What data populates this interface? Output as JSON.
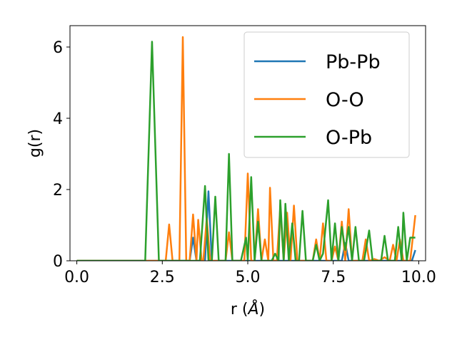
{
  "chart_data": {
    "type": "line",
    "xlabel_prefix": "r (",
    "xlabel_unit": "Å",
    "xlabel_suffix": ")",
    "ylabel": "g(r)",
    "xlim": [
      -0.2,
      10.2
    ],
    "ylim": [
      0,
      6.6
    ],
    "xticks": [
      0.0,
      2.5,
      5.0,
      7.5,
      10.0
    ],
    "xtick_labels": [
      "0.0",
      "2.5",
      "5.0",
      "7.5",
      "10.0"
    ],
    "yticks": [
      0,
      2,
      4,
      6
    ],
    "ytick_labels": [
      "0",
      "2",
      "4",
      "6"
    ],
    "grid": false,
    "legend_position": "top-right",
    "series": [
      {
        "name": "Pb-Pb",
        "color": "#1f77b4",
        "points": [
          [
            0,
            0
          ],
          [
            3.3,
            0
          ],
          [
            3.4,
            0.65
          ],
          [
            3.5,
            0
          ],
          [
            3.75,
            0
          ],
          [
            3.85,
            1.95
          ],
          [
            3.95,
            0
          ],
          [
            7.75,
            0
          ],
          [
            7.85,
            0.5
          ],
          [
            7.95,
            0
          ],
          [
            9.8,
            0
          ],
          [
            9.9,
            0.3
          ]
        ]
      },
      {
        "name": "O-O",
        "color": "#ff7f0e",
        "points": [
          [
            0,
            0
          ],
          [
            2.6,
            0
          ],
          [
            2.7,
            1.02
          ],
          [
            2.8,
            0
          ],
          [
            3.0,
            0
          ],
          [
            3.1,
            6.28
          ],
          [
            3.2,
            0
          ],
          [
            3.3,
            0
          ],
          [
            3.4,
            1.3
          ],
          [
            3.5,
            0
          ],
          [
            3.55,
            1.15
          ],
          [
            3.65,
            0
          ],
          [
            3.7,
            0
          ],
          [
            3.8,
            1.2
          ],
          [
            3.9,
            0
          ],
          [
            4.35,
            0
          ],
          [
            4.45,
            0.8
          ],
          [
            4.55,
            0
          ],
          [
            4.9,
            0
          ],
          [
            5.0,
            2.45
          ],
          [
            5.1,
            0
          ],
          [
            5.2,
            0
          ],
          [
            5.3,
            1.45
          ],
          [
            5.4,
            0
          ],
          [
            5.5,
            0.6
          ],
          [
            5.6,
            0
          ],
          [
            5.65,
            2.05
          ],
          [
            5.75,
            0
          ],
          [
            5.85,
            0
          ],
          [
            5.95,
            1.5
          ],
          [
            6.05,
            0
          ],
          [
            6.15,
            1.35
          ],
          [
            6.25,
            0
          ],
          [
            6.35,
            1.55
          ],
          [
            6.45,
            0
          ],
          [
            6.9,
            0
          ],
          [
            7.0,
            0.6
          ],
          [
            7.1,
            0
          ],
          [
            7.2,
            1.05
          ],
          [
            7.3,
            0
          ],
          [
            7.45,
            0
          ],
          [
            7.55,
            0.4
          ],
          [
            7.65,
            0
          ],
          [
            7.75,
            1.1
          ],
          [
            7.85,
            0
          ],
          [
            7.95,
            1.45
          ],
          [
            8.05,
            0
          ],
          [
            8.35,
            0
          ],
          [
            8.45,
            0.6
          ],
          [
            8.55,
            0
          ],
          [
            8.7,
            0.05
          ],
          [
            8.85,
            0
          ],
          [
            9.0,
            0.1
          ],
          [
            9.15,
            0
          ],
          [
            9.25,
            0.45
          ],
          [
            9.35,
            0
          ],
          [
            9.45,
            0.6
          ],
          [
            9.55,
            0
          ],
          [
            9.75,
            0
          ],
          [
            9.9,
            1.28
          ]
        ]
      },
      {
        "name": "O-Pb",
        "color": "#2ca02c",
        "points": [
          [
            0,
            0
          ],
          [
            2.0,
            0
          ],
          [
            2.2,
            6.15
          ],
          [
            2.4,
            0
          ],
          [
            3.6,
            0
          ],
          [
            3.75,
            2.1
          ],
          [
            3.85,
            0
          ],
          [
            3.95,
            0
          ],
          [
            4.05,
            1.8
          ],
          [
            4.15,
            0
          ],
          [
            4.35,
            0
          ],
          [
            4.45,
            3.0
          ],
          [
            4.55,
            0
          ],
          [
            4.8,
            0
          ],
          [
            4.95,
            0.65
          ],
          [
            5.0,
            0
          ],
          [
            5.1,
            2.35
          ],
          [
            5.2,
            0
          ],
          [
            5.3,
            1.1
          ],
          [
            5.4,
            0
          ],
          [
            5.7,
            0
          ],
          [
            5.8,
            0.2
          ],
          [
            5.9,
            0
          ],
          [
            5.95,
            1.7
          ],
          [
            6.05,
            0
          ],
          [
            6.1,
            1.6
          ],
          [
            6.2,
            0
          ],
          [
            6.3,
            1.05
          ],
          [
            6.4,
            0
          ],
          [
            6.5,
            0
          ],
          [
            6.6,
            1.4
          ],
          [
            6.7,
            0
          ],
          [
            6.9,
            0
          ],
          [
            7.0,
            0.45
          ],
          [
            7.1,
            0
          ],
          [
            7.2,
            0.2
          ],
          [
            7.35,
            1.7
          ],
          [
            7.45,
            0
          ],
          [
            7.55,
            1.05
          ],
          [
            7.65,
            0
          ],
          [
            7.75,
            0.95
          ],
          [
            7.85,
            0.3
          ],
          [
            7.95,
            0.95
          ],
          [
            8.05,
            0
          ],
          [
            8.15,
            0.95
          ],
          [
            8.25,
            0
          ],
          [
            8.4,
            0
          ],
          [
            8.55,
            0.85
          ],
          [
            8.65,
            0
          ],
          [
            8.9,
            0
          ],
          [
            9.0,
            0.7
          ],
          [
            9.1,
            0
          ],
          [
            9.3,
            0
          ],
          [
            9.4,
            0.95
          ],
          [
            9.5,
            0
          ],
          [
            9.55,
            1.35
          ],
          [
            9.65,
            0
          ],
          [
            9.75,
            0.65
          ],
          [
            9.9,
            0.65
          ]
        ]
      }
    ]
  }
}
